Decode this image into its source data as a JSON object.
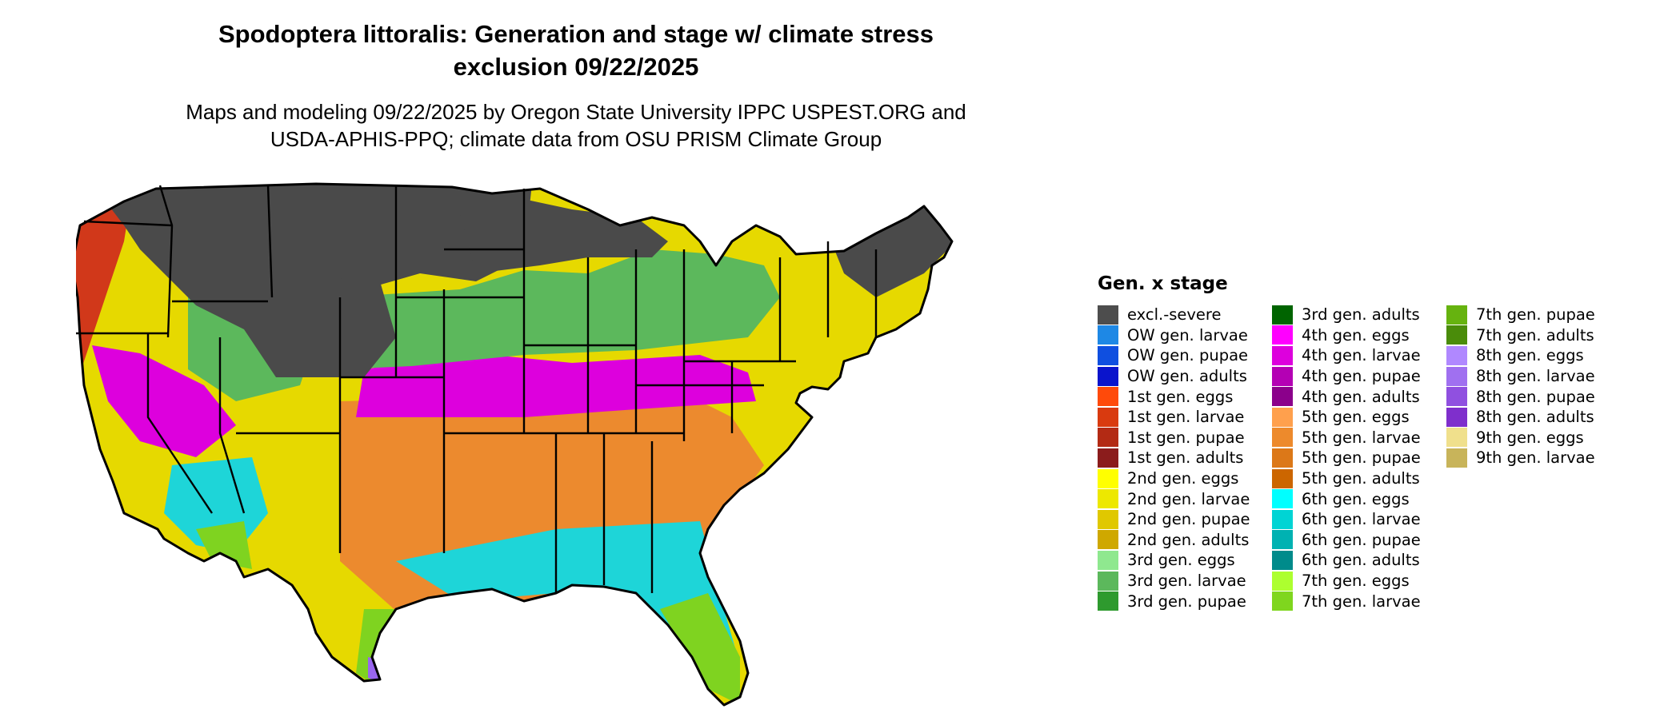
{
  "title_line1": "Spodoptera littoralis: Generation and stage w/ climate stress",
  "title_line2": "exclusion 09/22/2025",
  "subtitle_line1": "Maps and modeling 09/22/2025 by Oregon State University IPPC USPEST.ORG and",
  "subtitle_line2": "USDA-APHIS-PPQ; climate data from OSU PRISM Climate Group",
  "map": {
    "region": "Contiguous United States",
    "colors": {
      "excluded": "#4a4a4a",
      "pacific": "#d1381a",
      "gen2": "#e6d900",
      "gen3": "#5cb85c",
      "gen4": "#dd00dd",
      "gen5": "#ec8a2e",
      "gen6": "#1ed5d8",
      "gen7": "#7fd320",
      "gen8": "#9966ee",
      "border": "#000000"
    }
  },
  "legend": {
    "title": "Gen. x stage",
    "columns": [
      [
        {
          "label": "excl.-severe",
          "color": "#4d4d4d"
        },
        {
          "label": "OW gen. larvae",
          "color": "#1e88e5"
        },
        {
          "label": "OW gen. pupae",
          "color": "#0f4fe0"
        },
        {
          "label": "OW gen. adults",
          "color": "#0a14cc"
        },
        {
          "label": "1st gen. eggs",
          "color": "#ff4a0a"
        },
        {
          "label": "1st gen. larvae",
          "color": "#d93a0f"
        },
        {
          "label": "1st gen. pupae",
          "color": "#b32a14"
        },
        {
          "label": "1st gen. adults",
          "color": "#8b1c1c"
        },
        {
          "label": "2nd gen. eggs",
          "color": "#ffff00"
        },
        {
          "label": "2nd gen. larvae",
          "color": "#ede800"
        },
        {
          "label": "2nd gen. pupae",
          "color": "#e0c800"
        },
        {
          "label": "2nd gen. adults",
          "color": "#cfa800"
        },
        {
          "label": "3rd gen. eggs",
          "color": "#8fe88f"
        },
        {
          "label": "3rd gen. larvae",
          "color": "#5cb85c"
        },
        {
          "label": "3rd gen. pupae",
          "color": "#2e9a2e"
        }
      ],
      [
        {
          "label": "3rd gen. adults",
          "color": "#006400"
        },
        {
          "label": "4th gen. eggs",
          "color": "#ff00ff"
        },
        {
          "label": "4th gen. larvae",
          "color": "#dd00dd"
        },
        {
          "label": "4th gen. pupae",
          "color": "#b400b4"
        },
        {
          "label": "4th gen. adults",
          "color": "#8b008b"
        },
        {
          "label": "5th gen. eggs",
          "color": "#ffa04d"
        },
        {
          "label": "5th gen. larvae",
          "color": "#ed8a2c"
        },
        {
          "label": "5th gen. pupae",
          "color": "#dc7818"
        },
        {
          "label": "5th gen. adults",
          "color": "#cc6600"
        },
        {
          "label": "6th gen. eggs",
          "color": "#00ffff"
        },
        {
          "label": "6th gen. larvae",
          "color": "#00d4d4"
        },
        {
          "label": "6th gen. pupae",
          "color": "#00b2b2"
        },
        {
          "label": "6th gen. adults",
          "color": "#008b8b"
        },
        {
          "label": "7th gen. eggs",
          "color": "#adff2f"
        },
        {
          "label": "7th gen. larvae",
          "color": "#7fd61e"
        }
      ],
      [
        {
          "label": "7th gen. pupae",
          "color": "#66b30f"
        },
        {
          "label": "7th gen. adults",
          "color": "#4a8c0a"
        },
        {
          "label": "8th gen. eggs",
          "color": "#b088ff"
        },
        {
          "label": "8th gen. larvae",
          "color": "#a070f0"
        },
        {
          "label": "8th gen. pupae",
          "color": "#9050e0"
        },
        {
          "label": "8th gen. adults",
          "color": "#7f2fcc"
        },
        {
          "label": "9th gen. eggs",
          "color": "#f0e08c"
        },
        {
          "label": "9th gen. larvae",
          "color": "#c8b45a"
        }
      ]
    ]
  }
}
